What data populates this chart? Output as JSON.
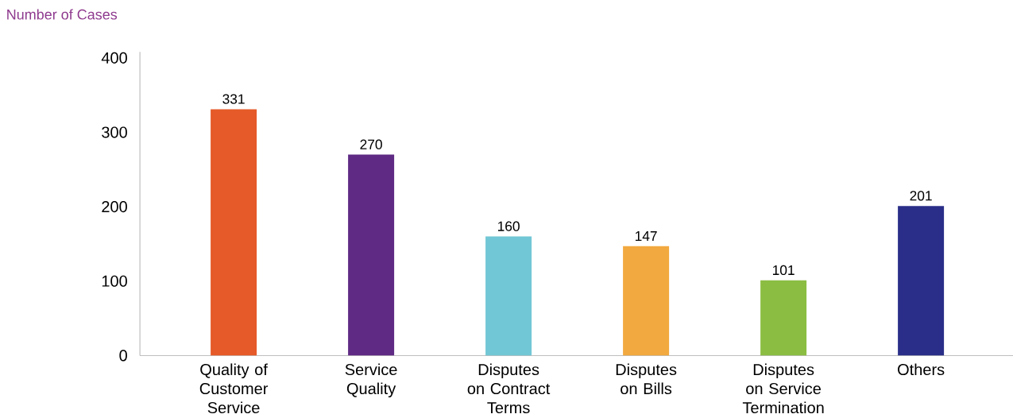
{
  "chart_data": {
    "type": "bar",
    "ylabel": "Number of Cases",
    "categories": [
      "Quality of Customer Service",
      "Service Quality",
      "Disputes on Contract Terms",
      "Disputes on Bills",
      "Disputes on Service Termination",
      "Others"
    ],
    "values": [
      331,
      270,
      160,
      147,
      101,
      201
    ],
    "colors": [
      "#e55a28",
      "#5f2a84",
      "#71c7d5",
      "#f2a93f",
      "#8bbd43",
      "#2a2e88"
    ],
    "ylim": [
      0,
      408
    ],
    "yticks": [
      0,
      100,
      200,
      300,
      400
    ],
    "data_labels": true
  }
}
